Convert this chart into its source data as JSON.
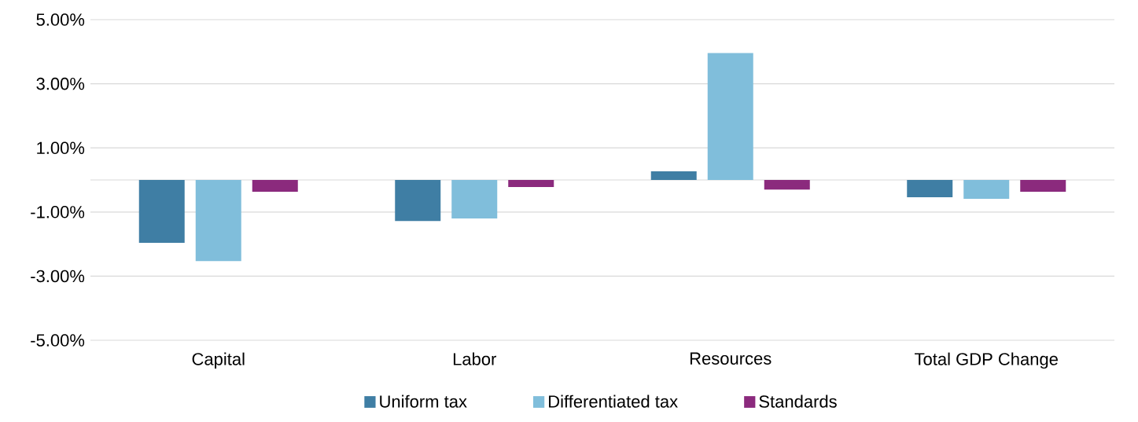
{
  "chart_data": {
    "type": "bar",
    "categories": [
      "Capital",
      "Labor",
      "Resources",
      "Total GDP Change"
    ],
    "series": [
      {
        "name": "Uniform tax",
        "color": "#3f7ea4",
        "values": [
          -1.96,
          -1.28,
          0.27,
          -0.54
        ]
      },
      {
        "name": "Differentiated tax",
        "color": "#80bedb",
        "values": [
          -2.53,
          -1.2,
          3.96,
          -0.59
        ]
      },
      {
        "name": "Standards",
        "color": "#8b2a7d",
        "values": [
          -0.37,
          -0.22,
          -0.3,
          -0.37
        ]
      }
    ],
    "ylim": [
      -5,
      5
    ],
    "yticks": [
      {
        "value": -5,
        "label": "-5.00%"
      },
      {
        "value": -3,
        "label": "-3.00%"
      },
      {
        "value": -1,
        "label": "-1.00%"
      },
      {
        "value": 1,
        "label": "1.00%"
      },
      {
        "value": 3,
        "label": "3.00%"
      },
      {
        "value": 5,
        "label": "5.00%"
      }
    ],
    "grid": "y",
    "legend": "bottom"
  }
}
